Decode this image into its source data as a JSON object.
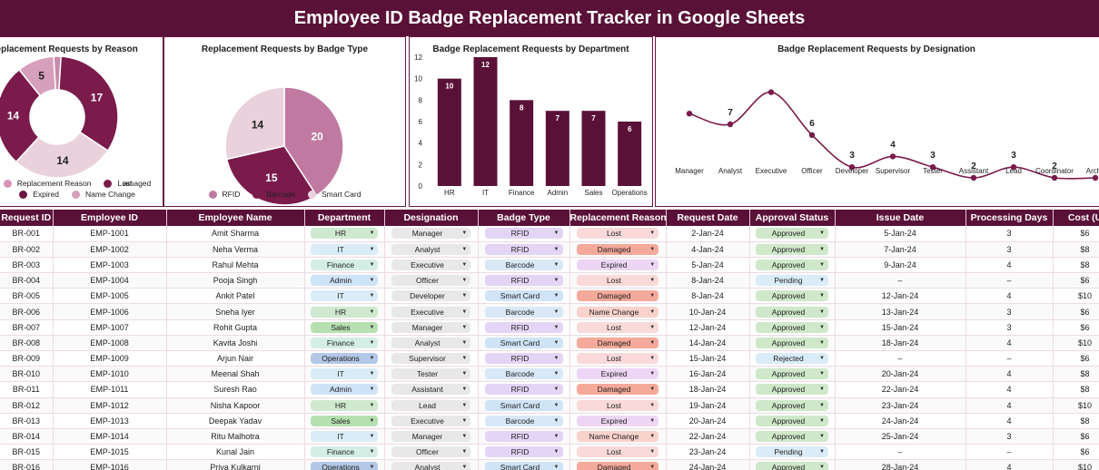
{
  "title": "Employee ID Badge Replacement Tracker in Google Sheets",
  "charts": {
    "reason_title": "Replacement Requests by Reason",
    "badge_title": "Replacement Requests by Badge Type",
    "dept_title": "Badge Replacement Requests by Department",
    "desig_title": "Badge Replacement Requests by Designation"
  },
  "chart_data": [
    {
      "type": "pie",
      "title": "Replacement Requests by Reason",
      "variant": "donut",
      "categories": [
        "Replacement Reason",
        "Lost",
        "Expired",
        "Damaged",
        "Name Change"
      ],
      "values": [
        1,
        17,
        14,
        14,
        5
      ],
      "slice_labels": [
        "",
        "17",
        "14",
        "14",
        "5"
      ],
      "legend": [
        {
          "label": "Replacement Reason",
          "color": "#d796b5"
        },
        {
          "label": "Lost",
          "color": "#7a1b4c"
        },
        {
          "label": "amaged",
          "color": "#7a1b4c"
        },
        {
          "label": "Expired",
          "color": "#6a1744"
        },
        {
          "label": "Name Change",
          "color": "#d6a0bc"
        }
      ],
      "colors": [
        "#c78bab",
        "#7a1b4c",
        "#ead2dd",
        "#7a1b4c",
        "#d6a0bc"
      ]
    },
    {
      "type": "pie",
      "title": "Replacement Requests by Badge Type",
      "categories": [
        "RFID",
        "Barcode",
        "Smart Card"
      ],
      "values": [
        20,
        15,
        14
      ],
      "colors": [
        "#c07aa1",
        "#7a1b4c",
        "#ead2dd"
      ]
    },
    {
      "type": "bar",
      "title": "Badge Replacement Requests by Department",
      "categories": [
        "HR",
        "IT",
        "Finance",
        "Admin",
        "Sales",
        "Operations"
      ],
      "values": [
        10,
        12,
        8,
        7,
        7,
        6
      ],
      "ylim": [
        0,
        12
      ],
      "yticks": [
        0,
        2,
        4,
        6,
        8,
        10,
        12
      ],
      "color": "#5a1137"
    },
    {
      "type": "line",
      "title": "Badge Replacement Requests by Designation",
      "categories": [
        "Manager",
        "Analyst",
        "Executive",
        "Officer",
        "Developer",
        "Supervisor",
        "Tester",
        "Assistant",
        "Lead",
        "Coordinator",
        "Archit"
      ],
      "values": [
        8,
        7,
        10,
        6,
        3,
        4,
        3,
        2,
        3,
        2,
        2
      ],
      "point_labels": [
        "",
        "7",
        "",
        "6",
        "3",
        "4",
        "3",
        "2",
        "3",
        "2",
        ""
      ],
      "color": "#7a1b4c"
    }
  ],
  "table": {
    "headers": [
      "Request ID",
      "Employee ID",
      "Employee Name",
      "Department",
      "Designation",
      "Badge Type",
      "Replacement Reason",
      "Request Date",
      "Approval Status",
      "Issue Date",
      "Processing Days",
      "Cost (U"
    ],
    "rows": [
      [
        "BR-001",
        "EMP-1001",
        "Amit Sharma",
        "HR",
        "Manager",
        "RFID",
        "Lost",
        "2-Jan-24",
        "Approved",
        "5-Jan-24",
        "3",
        "$6"
      ],
      [
        "BR-002",
        "EMP-1002",
        "Neha Verma",
        "IT",
        "Analyst",
        "RFID",
        "Damaged",
        "4-Jan-24",
        "Approved",
        "7-Jan-24",
        "3",
        "$8"
      ],
      [
        "BR-003",
        "EMP-1003",
        "Rahul Mehta",
        "Finance",
        "Executive",
        "Barcode",
        "Expired",
        "5-Jan-24",
        "Approved",
        "9-Jan-24",
        "4",
        "$8"
      ],
      [
        "BR-004",
        "EMP-1004",
        "Pooja Singh",
        "Admin",
        "Officer",
        "RFID",
        "Lost",
        "8-Jan-24",
        "Pending",
        "–",
        "–",
        "$6"
      ],
      [
        "BR-005",
        "EMP-1005",
        "Ankit Patel",
        "IT",
        "Developer",
        "Smart Card",
        "Damaged",
        "8-Jan-24",
        "Approved",
        "12-Jan-24",
        "4",
        "$10"
      ],
      [
        "BR-006",
        "EMP-1006",
        "Sneha Iyer",
        "HR",
        "Executive",
        "Barcode",
        "Name Change",
        "10-Jan-24",
        "Approved",
        "13-Jan-24",
        "3",
        "$6"
      ],
      [
        "BR-007",
        "EMP-1007",
        "Rohit Gupta",
        "Sales",
        "Manager",
        "RFID",
        "Lost",
        "12-Jan-24",
        "Approved",
        "15-Jan-24",
        "3",
        "$6"
      ],
      [
        "BR-008",
        "EMP-1008",
        "Kavita Joshi",
        "Finance",
        "Analyst",
        "Smart Card",
        "Damaged",
        "14-Jan-24",
        "Approved",
        "18-Jan-24",
        "4",
        "$10"
      ],
      [
        "BR-009",
        "EMP-1009",
        "Arjun Nair",
        "Operations",
        "Supervisor",
        "RFID",
        "Lost",
        "15-Jan-24",
        "Rejected",
        "–",
        "–",
        "$6"
      ],
      [
        "BR-010",
        "EMP-1010",
        "Meenal Shah",
        "IT",
        "Tester",
        "Barcode",
        "Expired",
        "16-Jan-24",
        "Approved",
        "20-Jan-24",
        "4",
        "$8"
      ],
      [
        "BR-011",
        "EMP-1011",
        "Suresh Rao",
        "Admin",
        "Assistant",
        "RFID",
        "Damaged",
        "18-Jan-24",
        "Approved",
        "22-Jan-24",
        "4",
        "$8"
      ],
      [
        "BR-012",
        "EMP-1012",
        "Nisha Kapoor",
        "HR",
        "Lead",
        "Smart Card",
        "Lost",
        "19-Jan-24",
        "Approved",
        "23-Jan-24",
        "4",
        "$10"
      ],
      [
        "BR-013",
        "EMP-1013",
        "Deepak Yadav",
        "Sales",
        "Executive",
        "Barcode",
        "Expired",
        "20-Jan-24",
        "Approved",
        "24-Jan-24",
        "4",
        "$8"
      ],
      [
        "BR-014",
        "EMP-1014",
        "Ritu Malhotra",
        "IT",
        "Manager",
        "RFID",
        "Name Change",
        "22-Jan-24",
        "Approved",
        "25-Jan-24",
        "3",
        "$6"
      ],
      [
        "BR-015",
        "EMP-1015",
        "Kunal Jain",
        "Finance",
        "Officer",
        "RFID",
        "Lost",
        "23-Jan-24",
        "Pending",
        "–",
        "–",
        "$6"
      ],
      [
        "BR-016",
        "EMP-1016",
        "Priya Kulkarni",
        "Operations",
        "Analyst",
        "Smart Card",
        "Damaged",
        "24-Jan-24",
        "Approved",
        "28-Jan-24",
        "4",
        "$10"
      ]
    ]
  },
  "chip_colors": {
    "department": {
      "HR": "#cfe9cf",
      "IT": "#d9ecf7",
      "Finance": "#d4eee6",
      "Admin": "#cfe3f7",
      "Sales": "#b6e0b0",
      "Operations": "#b3c7e6"
    },
    "designation": "#e8e8e8",
    "badge": {
      "RFID": "#e4d4f5",
      "Barcode": "#d9e8f7",
      "Smart Card": "#d0e4f7"
    },
    "reason": {
      "Lost": "#f9d9d9",
      "Damaged": "#f5a99a",
      "Expired": "#edd6f5",
      "Name Change": "#f9d2cc"
    },
    "status": {
      "Approved": "#cfe8c9",
      "Pending": "#d9ecf7",
      "Rejected": "#d9ecf7"
    }
  }
}
